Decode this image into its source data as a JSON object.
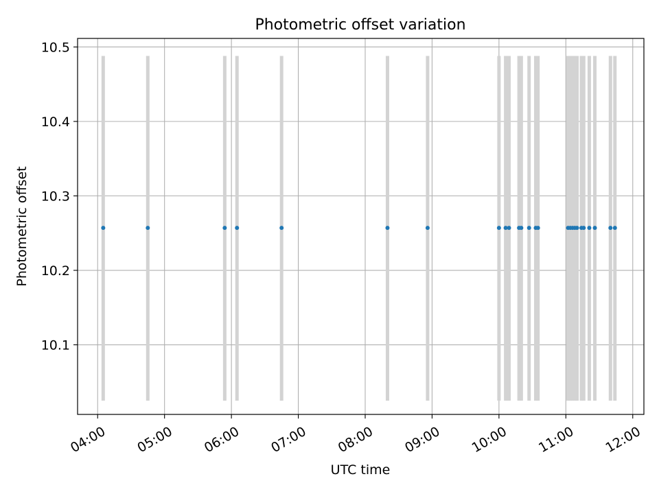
{
  "chart_data": {
    "type": "scatter",
    "title": "Photometric offset variation",
    "xlabel": "UTC time",
    "ylabel": "Photometric offset",
    "xlim": [
      "03:42",
      "12:10"
    ],
    "ylim": [
      10.0065,
      10.5115
    ],
    "grid": true,
    "legend": "none",
    "x_ticks": [
      "04:00",
      "05:00",
      "06:00",
      "07:00",
      "08:00",
      "09:00",
      "10:00",
      "11:00",
      "12:00"
    ],
    "y_ticks": [
      10.1,
      10.2,
      10.3,
      10.4,
      10.5
    ],
    "x_tick_labels": [
      "04:00",
      "05:00",
      "06:00",
      "07:00",
      "08:00",
      "09:00",
      "10:00",
      "11:00",
      "12:00"
    ],
    "y_tick_labels": [
      "10.1",
      "10.2",
      "10.3",
      "10.4",
      "10.5"
    ],
    "band_range": [
      10.025,
      10.488
    ],
    "band_times": [
      "04:05",
      "04:45",
      "05:54",
      "06:05",
      "06:45",
      "08:20",
      "08:56",
      "10:00",
      "10:06",
      "10:09",
      "10:18",
      "10:20",
      "10:27",
      "10:33",
      "10:35",
      "11:02",
      "11:04",
      "11:06",
      "11:08",
      "11:10",
      "11:14",
      "11:16",
      "11:21",
      "11:26",
      "11:40",
      "11:44"
    ],
    "series": [
      {
        "times": [
          "04:05",
          "04:45",
          "05:54",
          "06:05",
          "06:45",
          "08:20",
          "08:56",
          "10:00",
          "10:06",
          "10:09",
          "10:18",
          "10:20",
          "10:27",
          "10:33",
          "10:35",
          "11:02",
          "11:04",
          "11:06",
          "11:08",
          "11:10",
          "11:14",
          "11:16",
          "11:21",
          "11:26",
          "11:40",
          "11:44"
        ],
        "values": [
          10.257,
          10.257,
          10.257,
          10.257,
          10.257,
          10.257,
          10.257,
          10.257,
          10.257,
          10.257,
          10.257,
          10.257,
          10.257,
          10.257,
          10.257,
          10.257,
          10.257,
          10.257,
          10.257,
          10.257,
          10.257,
          10.257,
          10.257,
          10.257,
          10.257,
          10.257
        ]
      }
    ],
    "colors": {
      "points": "#1f77b4",
      "bands": "#d3d3d3",
      "grid": "#b0b0b0",
      "axes": "#000000"
    }
  }
}
